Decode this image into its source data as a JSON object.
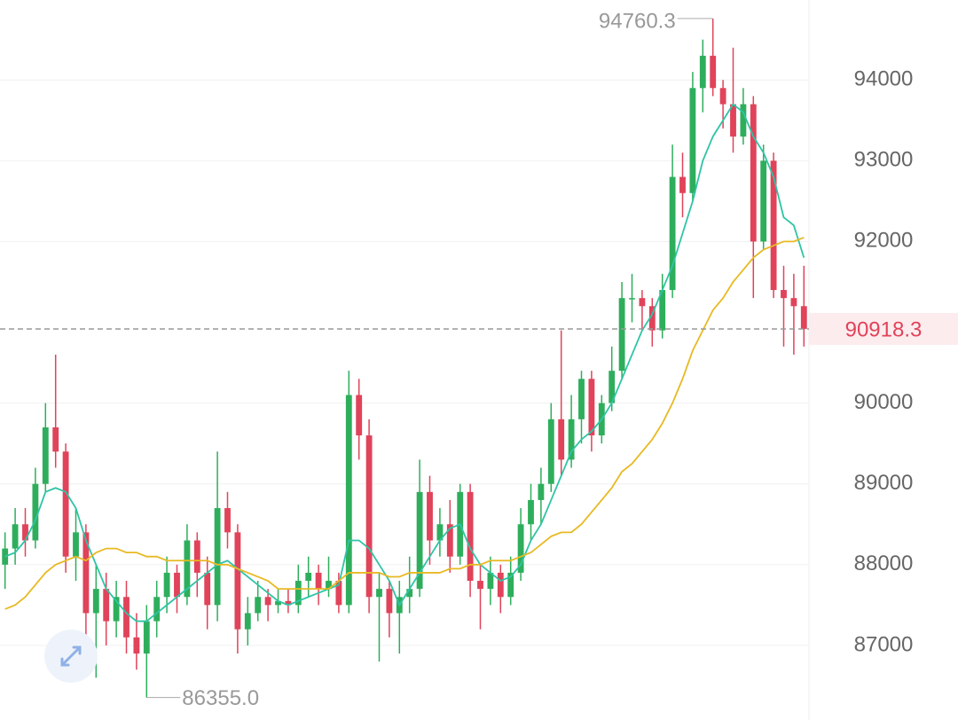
{
  "chart_data": {
    "type": "candlestick",
    "up_color": "#2eae5c",
    "down_color": "#e0435a",
    "ylim": [
      86077,
      94990
    ],
    "yticks": [
      87000,
      88000,
      89000,
      90000,
      92000,
      93000,
      94000
    ],
    "grid": true,
    "open": [
      88000,
      88200,
      88500,
      88300,
      89000,
      89700,
      89400,
      88100,
      88400,
      87400,
      87700,
      87300,
      87600,
      87100,
      86900,
      87300,
      87600,
      87900,
      87600,
      88300,
      87900,
      87500,
      88700,
      88400,
      87200,
      87400,
      87600,
      87500,
      87550,
      87500,
      87800,
      87900,
      87700,
      87800,
      87500,
      90100,
      89600,
      87600,
      87700,
      87400,
      87600,
      87700,
      88900,
      88300,
      88500,
      88100,
      88900,
      87800,
      87700,
      87900,
      87600,
      87900,
      88500,
      88800,
      89000,
      89800,
      89300,
      89800,
      90300,
      89600,
      90000,
      90400,
      91300,
      91300,
      91200,
      90900,
      91400,
      92800,
      92600,
      93900,
      94300,
      93900,
      93700,
      93300,
      93700,
      92000,
      93000,
      91400,
      91300,
      91200
    ],
    "high": [
      88400,
      88700,
      88700,
      89200,
      90000,
      90600,
      89500,
      88700,
      88500,
      88000,
      87900,
      87800,
      87800,
      87400,
      87500,
      87800,
      88100,
      88000,
      88500,
      88400,
      88100,
      89400,
      88900,
      88500,
      87600,
      87800,
      87700,
      87700,
      87700,
      88000,
      88100,
      88000,
      88100,
      87900,
      90400,
      90300,
      89800,
      87900,
      87800,
      87800,
      88100,
      89300,
      89100,
      88700,
      88800,
      89000,
      89000,
      88000,
      88100,
      88000,
      88100,
      88700,
      89000,
      89200,
      90000,
      90900,
      90100,
      90400,
      90400,
      90100,
      90700,
      91500,
      91600,
      91400,
      91300,
      91600,
      93200,
      93100,
      94100,
      94500,
      94760.3,
      94000,
      94400,
      93900,
      93800,
      93200,
      93100,
      91700,
      91600,
      91700
    ],
    "low": [
      87700,
      88000,
      88100,
      88200,
      88900,
      89200,
      87900,
      87800,
      87000,
      86600,
      87000,
      87100,
      86900,
      86700,
      86355,
      87100,
      87400,
      87400,
      87500,
      87600,
      87200,
      87300,
      88200,
      86900,
      87000,
      87300,
      87300,
      87400,
      87400,
      87400,
      87600,
      87500,
      87600,
      87400,
      87400,
      89300,
      87400,
      86800,
      87100,
      86900,
      87400,
      87600,
      88000,
      88100,
      87900,
      88000,
      87600,
      87200,
      87500,
      87400,
      87500,
      87800,
      88300,
      88500,
      88900,
      89100,
      89200,
      89500,
      89400,
      89500,
      89900,
      90300,
      91000,
      90900,
      90700,
      90800,
      91300,
      92300,
      92500,
      93600,
      93800,
      93400,
      93100,
      93200,
      91300,
      91900,
      91300,
      90700,
      90600,
      90700
    ],
    "close": [
      88200,
      88500,
      88300,
      89000,
      89700,
      89400,
      88100,
      88400,
      87400,
      87700,
      87300,
      87600,
      87100,
      86900,
      87300,
      87600,
      87900,
      87600,
      88300,
      87900,
      87500,
      88700,
      88400,
      87200,
      87400,
      87600,
      87500,
      87550,
      87500,
      87800,
      87900,
      87700,
      87800,
      87500,
      90100,
      89600,
      87600,
      87700,
      87400,
      87600,
      87700,
      88900,
      88300,
      88500,
      88100,
      88900,
      87800,
      87700,
      87900,
      87600,
      87900,
      88500,
      88800,
      89000,
      89800,
      89300,
      89800,
      90300,
      89600,
      90000,
      90400,
      91300,
      91300,
      91200,
      90900,
      91400,
      92800,
      92600,
      93900,
      94300,
      93900,
      93700,
      93300,
      93700,
      92000,
      93000,
      91400,
      91300,
      91200,
      90918.3
    ],
    "series": [
      {
        "color": "#2ec4a6",
        "values": [
          88100,
          88150,
          88300,
          88550,
          88900,
          88950,
          88900,
          88700,
          88300,
          88000,
          87700,
          87550,
          87400,
          87300,
          87300,
          87400,
          87500,
          87600,
          87700,
          87800,
          87900,
          88000,
          88050,
          87950,
          87850,
          87750,
          87650,
          87550,
          87500,
          87550,
          87600,
          87650,
          87700,
          87750,
          88300,
          88300,
          88200,
          88000,
          87800,
          87500,
          87700,
          87900,
          88100,
          88300,
          88450,
          88500,
          88200,
          88000,
          87900,
          87800,
          87850,
          88000,
          88300,
          88500,
          88800,
          89100,
          89400,
          89550,
          89650,
          89800,
          90000,
          90300,
          90600,
          90900,
          91100,
          91400,
          91700,
          92100,
          92500,
          93000,
          93300,
          93500,
          93700,
          93600,
          93300,
          93100,
          92800,
          92300,
          92200,
          91800
        ]
      },
      {
        "color": "#e8b923",
        "values": [
          87450,
          87500,
          87600,
          87750,
          87900,
          88000,
          88050,
          88100,
          88050,
          88150,
          88200,
          88200,
          88150,
          88150,
          88100,
          88100,
          88050,
          88050,
          88050,
          88050,
          88050,
          88000,
          88000,
          87950,
          87900,
          87850,
          87800,
          87700,
          87700,
          87700,
          87700,
          87700,
          87700,
          87800,
          87900,
          87900,
          87900,
          87900,
          87850,
          87850,
          87900,
          87900,
          87900,
          87900,
          87950,
          87950,
          88000,
          88000,
          88050,
          88050,
          88050,
          88100,
          88150,
          88250,
          88350,
          88400,
          88400,
          88500,
          88650,
          88800,
          88950,
          89150,
          89250,
          89400,
          89550,
          89750,
          90000,
          90300,
          90650,
          90900,
          91150,
          91300,
          91500,
          91650,
          91800,
          91900,
          91950,
          92000,
          92000,
          92050
        ]
      }
    ],
    "max_label": 94760.3,
    "min_label": {
      "value": 86355,
      "label": "86355.0"
    },
    "last_price": 90918.3
  }
}
